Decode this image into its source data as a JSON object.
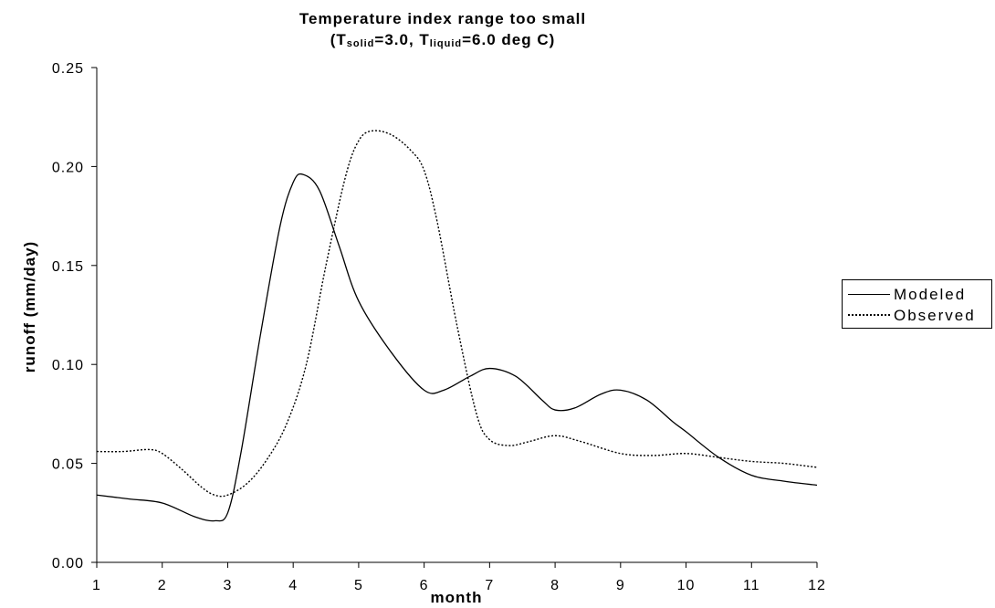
{
  "chart_data": {
    "type": "line",
    "title": "Temperature index range too small",
    "subtitle": {
      "open": "(T",
      "solid_sub": "solid",
      "mid": "=3.0, T",
      "liquid_sub": "liquid",
      "close": "=6.0 deg C)"
    },
    "xlabel": "month",
    "ylabel": "runoff (mm/day)",
    "xlim": [
      1,
      12
    ],
    "ylim": [
      0,
      0.25
    ],
    "x_ticks": [
      "1",
      "2",
      "3",
      "4",
      "5",
      "6",
      "7",
      "8",
      "9",
      "10",
      "11",
      "12"
    ],
    "y_ticks": [
      "0.00",
      "0.05",
      "0.10",
      "0.15",
      "0.20",
      "0.25"
    ],
    "grid": false,
    "legend_position": "right",
    "series": [
      {
        "name": "Modeled",
        "style": "solid",
        "color": "#000000",
        "x": [
          1,
          1.5,
          2,
          2.5,
          2.8,
          3.0,
          3.2,
          3.5,
          3.8,
          4.0,
          4.15,
          4.4,
          4.7,
          5.0,
          5.5,
          6.0,
          6.3,
          6.7,
          7.0,
          7.4,
          7.8,
          8.0,
          8.3,
          8.7,
          9.0,
          9.4,
          9.8,
          10.0,
          10.5,
          11.0,
          11.5,
          12.0
        ],
        "values": [
          0.034,
          0.032,
          0.03,
          0.023,
          0.021,
          0.025,
          0.055,
          0.115,
          0.17,
          0.192,
          0.196,
          0.188,
          0.16,
          0.132,
          0.106,
          0.087,
          0.087,
          0.094,
          0.098,
          0.094,
          0.082,
          0.077,
          0.078,
          0.085,
          0.087,
          0.082,
          0.071,
          0.066,
          0.053,
          0.044,
          0.041,
          0.039
        ]
      },
      {
        "name": "Observed",
        "style": "dotted",
        "color": "#000000",
        "x": [
          1,
          1.4,
          1.8,
          2.0,
          2.3,
          2.6,
          2.8,
          3.0,
          3.3,
          3.6,
          3.9,
          4.2,
          4.5,
          4.8,
          5.0,
          5.2,
          5.5,
          5.8,
          6.0,
          6.2,
          6.5,
          6.8,
          7.0,
          7.3,
          7.6,
          8.0,
          8.4,
          9.0,
          9.5,
          10.0,
          10.5,
          11.0,
          11.5,
          12.0
        ],
        "values": [
          0.056,
          0.056,
          0.057,
          0.055,
          0.047,
          0.038,
          0.034,
          0.034,
          0.04,
          0.052,
          0.07,
          0.1,
          0.15,
          0.195,
          0.213,
          0.218,
          0.216,
          0.208,
          0.198,
          0.172,
          0.12,
          0.075,
          0.062,
          0.059,
          0.061,
          0.064,
          0.061,
          0.055,
          0.054,
          0.055,
          0.053,
          0.051,
          0.05,
          0.048
        ]
      }
    ]
  }
}
